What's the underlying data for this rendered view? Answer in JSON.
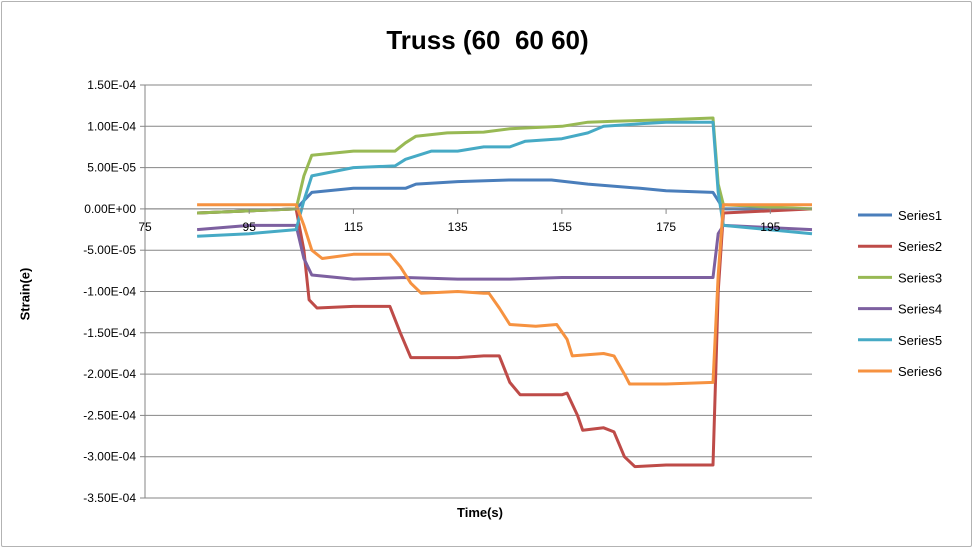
{
  "chart_data": {
    "type": "line",
    "title": "Truss (60  60 60)",
    "xlabel": "Time(s)",
    "ylabel": "Strain(e)",
    "xlim": [
      75,
      203
    ],
    "ylim": [
      -0.00035,
      0.00015
    ],
    "x_ticks": [
      75,
      95,
      115,
      135,
      155,
      175,
      195
    ],
    "x_tick_labels": [
      "75",
      "95",
      "115",
      "135",
      "155",
      "175",
      "195"
    ],
    "y_ticks": [
      0.00015,
      0.0001,
      5e-05,
      0,
      -5e-05,
      -0.0001,
      -0.00015,
      -0.0002,
      -0.00025,
      -0.0003,
      -0.00035
    ],
    "y_tick_labels": [
      "1.50E-04",
      "1.00E-04",
      "5.00E-05",
      "0.00E+00",
      "-5.00E-05",
      "-1.00E-04",
      "-1.50E-04",
      "-2.00E-04",
      "-2.50E-04",
      "-3.00E-04",
      "-3.50E-04"
    ],
    "grid": "horizontal",
    "legend_position": "right",
    "series": [
      {
        "name": "Series1",
        "color": "#4a7ebb",
        "points": [
          [
            85,
            -5e-06
          ],
          [
            104,
            0
          ],
          [
            105.5,
            1e-05
          ],
          [
            107,
            2e-05
          ],
          [
            115,
            2.5e-05
          ],
          [
            125,
            2.5e-05
          ],
          [
            127,
            3e-05
          ],
          [
            135,
            3.3e-05
          ],
          [
            145,
            3.5e-05
          ],
          [
            153,
            3.5e-05
          ],
          [
            160,
            3e-05
          ],
          [
            170,
            2.5e-05
          ],
          [
            175,
            2.2e-05
          ],
          [
            184,
            2e-05
          ],
          [
            185,
            1e-05
          ],
          [
            186,
            0
          ],
          [
            203,
            0
          ]
        ]
      },
      {
        "name": "Series2",
        "color": "#be4b48",
        "points": [
          [
            85,
            -5e-06
          ],
          [
            104,
            0
          ],
          [
            105.5,
            -5e-05
          ],
          [
            106.5,
            -0.00011
          ],
          [
            108,
            -0.00012
          ],
          [
            115,
            -0.000118
          ],
          [
            122,
            -0.000118
          ],
          [
            124,
            -0.00015
          ],
          [
            126,
            -0.00018
          ],
          [
            135,
            -0.00018
          ],
          [
            140,
            -0.000178
          ],
          [
            143,
            -0.000178
          ],
          [
            145,
            -0.00021
          ],
          [
            147,
            -0.000225
          ],
          [
            155,
            -0.000225
          ],
          [
            156,
            -0.000223
          ],
          [
            158,
            -0.00025
          ],
          [
            159,
            -0.000268
          ],
          [
            163,
            -0.000265
          ],
          [
            165,
            -0.00027
          ],
          [
            167,
            -0.0003
          ],
          [
            169,
            -0.000312
          ],
          [
            175,
            -0.00031
          ],
          [
            184,
            -0.00031
          ],
          [
            185,
            -0.0001
          ],
          [
            186,
            -5e-06
          ],
          [
            203,
            0
          ]
        ]
      },
      {
        "name": "Series3",
        "color": "#98b954",
        "points": [
          [
            85,
            -5e-06
          ],
          [
            104,
            0
          ],
          [
            105.5,
            4e-05
          ],
          [
            107,
            6.5e-05
          ],
          [
            115,
            7e-05
          ],
          [
            123,
            7e-05
          ],
          [
            125,
            8e-05
          ],
          [
            127,
            8.8e-05
          ],
          [
            133,
            9.2e-05
          ],
          [
            140,
            9.3e-05
          ],
          [
            145,
            9.7e-05
          ],
          [
            155,
            0.0001
          ],
          [
            160,
            0.000105
          ],
          [
            165,
            0.000106
          ],
          [
            175,
            0.000108
          ],
          [
            184,
            0.00011
          ],
          [
            185,
            3e-05
          ],
          [
            186,
            5e-06
          ],
          [
            203,
            0
          ]
        ]
      },
      {
        "name": "Series4",
        "color": "#7d60a0",
        "points": [
          [
            85,
            -2.5e-05
          ],
          [
            95,
            -2e-05
          ],
          [
            104,
            -2e-05
          ],
          [
            105.5,
            -6e-05
          ],
          [
            107,
            -8e-05
          ],
          [
            115,
            -8.5e-05
          ],
          [
            125,
            -8.3e-05
          ],
          [
            135,
            -8.5e-05
          ],
          [
            145,
            -8.5e-05
          ],
          [
            155,
            -8.3e-05
          ],
          [
            165,
            -8.3e-05
          ],
          [
            175,
            -8.3e-05
          ],
          [
            184,
            -8.3e-05
          ],
          [
            185,
            -3e-05
          ],
          [
            186,
            -2e-05
          ],
          [
            203,
            -2.5e-05
          ]
        ]
      },
      {
        "name": "Series5",
        "color": "#46aac5",
        "points": [
          [
            85,
            -3.3e-05
          ],
          [
            95,
            -3e-05
          ],
          [
            104,
            -2.5e-05
          ],
          [
            105.5,
            1e-05
          ],
          [
            107,
            4e-05
          ],
          [
            115,
            5e-05
          ],
          [
            123,
            5.2e-05
          ],
          [
            125,
            6e-05
          ],
          [
            130,
            7e-05
          ],
          [
            135,
            7e-05
          ],
          [
            140,
            7.5e-05
          ],
          [
            145,
            7.5e-05
          ],
          [
            148,
            8.2e-05
          ],
          [
            155,
            8.5e-05
          ],
          [
            160,
            9.2e-05
          ],
          [
            163,
            0.0001
          ],
          [
            170,
            0.000103
          ],
          [
            175,
            0.000105
          ],
          [
            184,
            0.000105
          ],
          [
            185,
            2e-05
          ],
          [
            186,
            -2e-05
          ],
          [
            203,
            -3e-05
          ]
        ]
      },
      {
        "name": "Series6",
        "color": "#f69240",
        "points": [
          [
            85,
            5e-06
          ],
          [
            104,
            5e-06
          ],
          [
            105.5,
            -2e-05
          ],
          [
            107,
            -5e-05
          ],
          [
            109,
            -6e-05
          ],
          [
            115,
            -5.5e-05
          ],
          [
            122,
            -5.5e-05
          ],
          [
            124,
            -7e-05
          ],
          [
            126,
            -9e-05
          ],
          [
            128,
            -0.000102
          ],
          [
            135,
            -0.0001
          ],
          [
            140,
            -0.000102
          ],
          [
            141,
            -0.000102
          ],
          [
            143,
            -0.00012
          ],
          [
            145,
            -0.00014
          ],
          [
            150,
            -0.000142
          ],
          [
            154,
            -0.00014
          ],
          [
            156,
            -0.000158
          ],
          [
            157,
            -0.000178
          ],
          [
            163,
            -0.000175
          ],
          [
            165,
            -0.000178
          ],
          [
            167,
            -0.0002
          ],
          [
            168,
            -0.000212
          ],
          [
            175,
            -0.000212
          ],
          [
            184,
            -0.00021
          ],
          [
            185,
            -8e-05
          ],
          [
            186,
            5e-06
          ],
          [
            203,
            5e-06
          ]
        ]
      }
    ]
  }
}
